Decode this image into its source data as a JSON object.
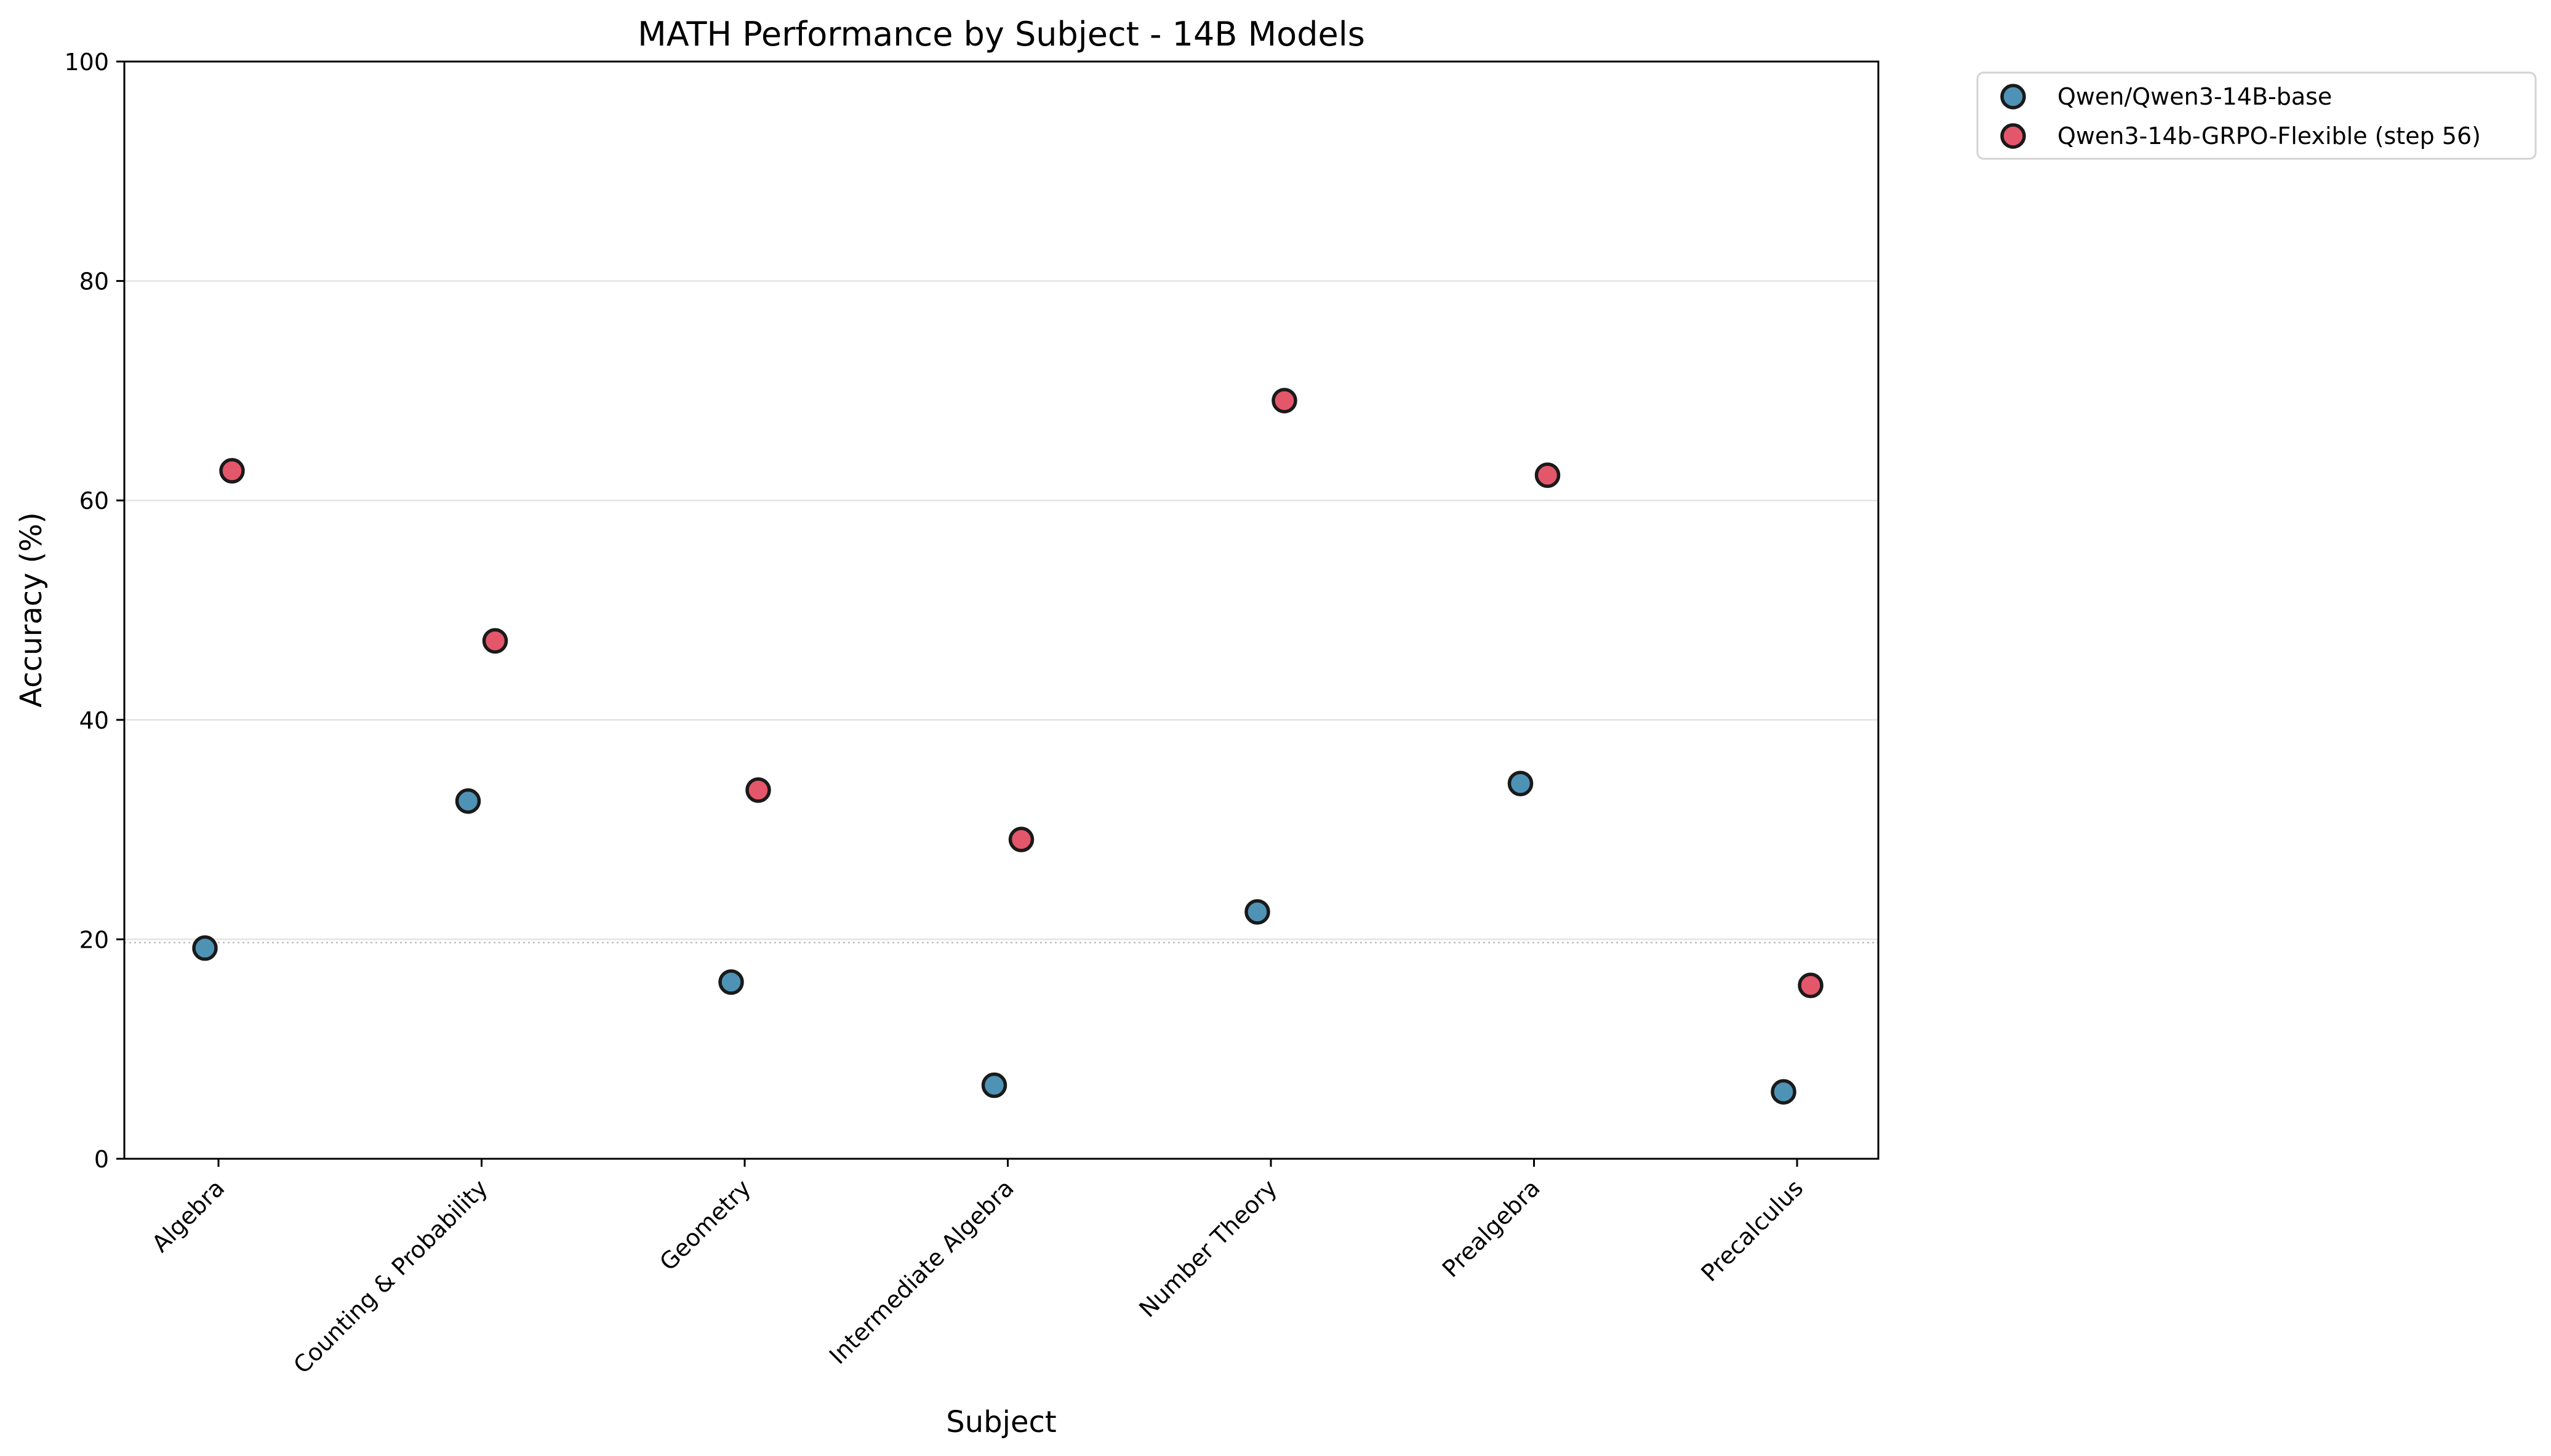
{
  "chart_data": {
    "type": "scatter",
    "title": "MATH Performance by Subject - 14B Models",
    "xlabel": "Subject",
    "ylabel": "Accuracy (%)",
    "ylim": [
      0,
      100
    ],
    "yticks": [
      "0",
      "20",
      "40",
      "60",
      "80",
      "100"
    ],
    "grid": "horizontal",
    "legend_position": "outside-top-right",
    "reference_line": {
      "y": 19.7,
      "style": "dotted"
    },
    "categories": [
      "Algebra",
      "Counting & Probability",
      "Geometry",
      "Intermediate Algebra",
      "Number Theory",
      "Prealgebra",
      "Precalculus"
    ],
    "series": [
      {
        "name": "Qwen/Qwen3-14B-base",
        "color": "#4e93b5",
        "values": [
          19.2,
          32.6,
          16.1,
          6.7,
          22.5,
          34.2,
          6.1
        ]
      },
      {
        "name": "Qwen3-14b-GRPO-Flexible (step 56)",
        "color": "#e4566a",
        "values": [
          62.7,
          47.2,
          33.6,
          29.1,
          69.1,
          62.3,
          15.8
        ]
      }
    ]
  }
}
